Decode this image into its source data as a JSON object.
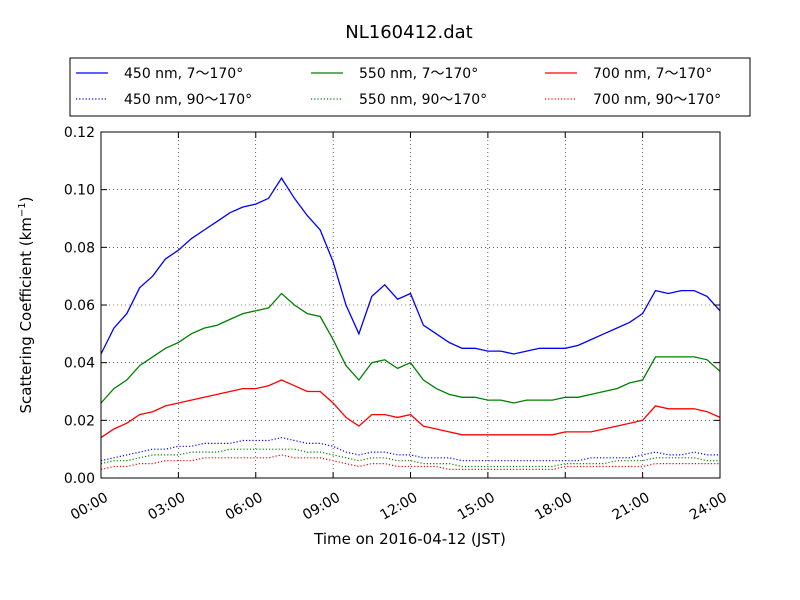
{
  "chart_data": {
    "type": "line",
    "title": "NL160412.dat",
    "xlabel": "Time on 2016-04-12 (JST)",
    "ylabel_main": "Scattering Coefficient (km",
    "ylabel_sup": "−1",
    "ylabel_end": ")",
    "ylim": [
      0,
      0.12
    ],
    "xlim": [
      "00:00",
      "24:00"
    ],
    "grid": true,
    "legend_position": "top",
    "x_ticks": [
      "00:00",
      "03:00",
      "06:00",
      "09:00",
      "12:00",
      "15:00",
      "18:00",
      "21:00",
      "24:00"
    ],
    "y_ticks": [
      "0.00",
      "0.02",
      "0.04",
      "0.06",
      "0.08",
      "0.10",
      "0.12"
    ],
    "x_hours": [
      0,
      0.5,
      1,
      1.5,
      2,
      2.5,
      3,
      3.5,
      4,
      4.5,
      5,
      5.5,
      6,
      6.5,
      7,
      7.5,
      8,
      8.5,
      9,
      9.5,
      10,
      10.5,
      11,
      11.5,
      12,
      12.5,
      13,
      13.5,
      14,
      14.5,
      15,
      15.5,
      16,
      16.5,
      17,
      17.5,
      18,
      18.5,
      19,
      19.5,
      20,
      20.5,
      21,
      21.5,
      22,
      22.5,
      23,
      23.5,
      24
    ],
    "series": [
      {
        "name": "450 nm, 7～170°",
        "color": "#0000ff",
        "style": "solid",
        "values": [
          0.043,
          0.052,
          0.057,
          0.066,
          0.07,
          0.076,
          0.079,
          0.083,
          0.086,
          0.089,
          0.092,
          0.094,
          0.095,
          0.097,
          0.104,
          0.097,
          0.091,
          0.086,
          0.075,
          0.06,
          0.05,
          0.063,
          0.067,
          0.062,
          0.064,
          0.053,
          0.05,
          0.047,
          0.045,
          0.045,
          0.044,
          0.044,
          0.043,
          0.044,
          0.045,
          0.045,
          0.045,
          0.046,
          0.048,
          0.05,
          0.052,
          0.054,
          0.057,
          0.065,
          0.064,
          0.065,
          0.065,
          0.063,
          0.058
        ]
      },
      {
        "name": "450 nm, 90～170°",
        "color": "#0000ff",
        "style": "dotted",
        "values": [
          0.006,
          0.007,
          0.008,
          0.009,
          0.01,
          0.01,
          0.011,
          0.011,
          0.012,
          0.012,
          0.012,
          0.013,
          0.013,
          0.013,
          0.014,
          0.013,
          0.012,
          0.012,
          0.011,
          0.009,
          0.008,
          0.009,
          0.009,
          0.008,
          0.008,
          0.007,
          0.007,
          0.007,
          0.006,
          0.006,
          0.006,
          0.006,
          0.006,
          0.006,
          0.006,
          0.006,
          0.006,
          0.006,
          0.007,
          0.007,
          0.007,
          0.007,
          0.008,
          0.009,
          0.008,
          0.008,
          0.009,
          0.008,
          0.008
        ]
      },
      {
        "name": "550 nm, 7～170°",
        "color": "#008000",
        "style": "solid",
        "values": [
          0.026,
          0.031,
          0.034,
          0.039,
          0.042,
          0.045,
          0.047,
          0.05,
          0.052,
          0.053,
          0.055,
          0.057,
          0.058,
          0.059,
          0.064,
          0.06,
          0.057,
          0.056,
          0.048,
          0.039,
          0.034,
          0.04,
          0.041,
          0.038,
          0.04,
          0.034,
          0.031,
          0.029,
          0.028,
          0.028,
          0.027,
          0.027,
          0.026,
          0.027,
          0.027,
          0.027,
          0.028,
          0.028,
          0.029,
          0.03,
          0.031,
          0.033,
          0.034,
          0.042,
          0.042,
          0.042,
          0.042,
          0.041,
          0.037
        ]
      },
      {
        "name": "550 nm, 90～170°",
        "color": "#008000",
        "style": "dotted",
        "values": [
          0.005,
          0.006,
          0.006,
          0.007,
          0.008,
          0.008,
          0.008,
          0.009,
          0.009,
          0.009,
          0.01,
          0.01,
          0.01,
          0.01,
          0.01,
          0.01,
          0.009,
          0.009,
          0.008,
          0.007,
          0.006,
          0.007,
          0.007,
          0.006,
          0.006,
          0.005,
          0.005,
          0.005,
          0.004,
          0.004,
          0.004,
          0.004,
          0.004,
          0.004,
          0.004,
          0.004,
          0.005,
          0.005,
          0.005,
          0.005,
          0.006,
          0.006,
          0.006,
          0.007,
          0.007,
          0.007,
          0.007,
          0.006,
          0.006
        ]
      },
      {
        "name": "700 nm, 7～170°",
        "color": "#ff0000",
        "style": "solid",
        "values": [
          0.014,
          0.017,
          0.019,
          0.022,
          0.023,
          0.025,
          0.026,
          0.027,
          0.028,
          0.029,
          0.03,
          0.031,
          0.031,
          0.032,
          0.034,
          0.032,
          0.03,
          0.03,
          0.026,
          0.021,
          0.018,
          0.022,
          0.022,
          0.021,
          0.022,
          0.018,
          0.017,
          0.016,
          0.015,
          0.015,
          0.015,
          0.015,
          0.015,
          0.015,
          0.015,
          0.015,
          0.016,
          0.016,
          0.016,
          0.017,
          0.018,
          0.019,
          0.02,
          0.025,
          0.024,
          0.024,
          0.024,
          0.023,
          0.021
        ]
      },
      {
        "name": "700 nm, 90～170°",
        "color": "#ff0000",
        "style": "dotted",
        "values": [
          0.003,
          0.004,
          0.004,
          0.005,
          0.005,
          0.006,
          0.006,
          0.006,
          0.007,
          0.007,
          0.007,
          0.007,
          0.007,
          0.007,
          0.008,
          0.007,
          0.007,
          0.007,
          0.006,
          0.005,
          0.004,
          0.005,
          0.005,
          0.004,
          0.004,
          0.004,
          0.004,
          0.003,
          0.003,
          0.003,
          0.003,
          0.003,
          0.003,
          0.003,
          0.003,
          0.003,
          0.004,
          0.004,
          0.004,
          0.004,
          0.004,
          0.004,
          0.004,
          0.005,
          0.005,
          0.005,
          0.005,
          0.005,
          0.005
        ]
      }
    ]
  }
}
